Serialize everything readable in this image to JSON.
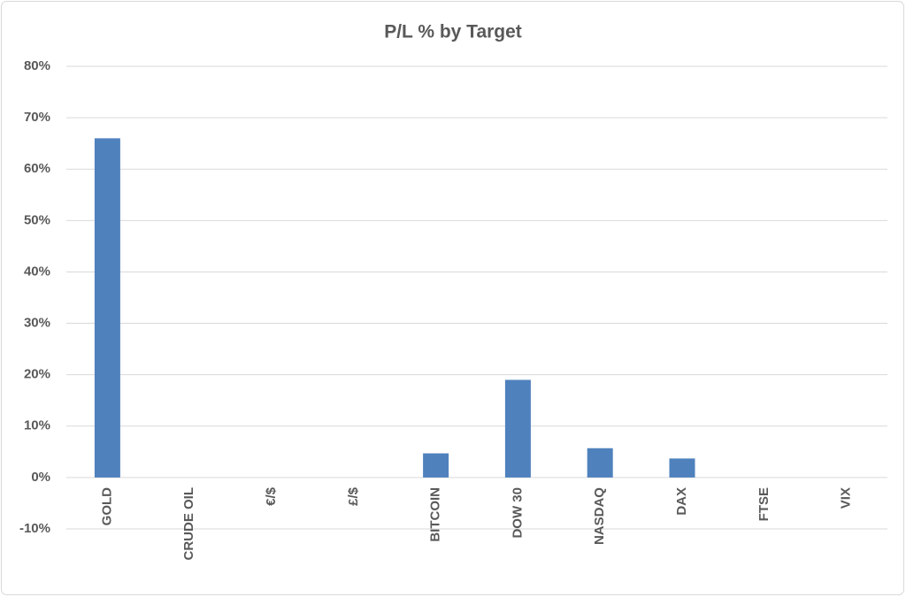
{
  "chart_data": {
    "type": "bar",
    "title": "P/L % by Target",
    "categories": [
      "GOLD",
      "CRUDE OIL",
      "€/$",
      "£/$",
      "BITCOIN",
      "DOW 30",
      "NASDAQ",
      "DAX",
      "FTSE",
      "VIX"
    ],
    "values": [
      66,
      0,
      0,
      0,
      4.7,
      19,
      5.7,
      3.7,
      0,
      0
    ],
    "color": "#4f81bd",
    "ylim": [
      -10,
      80
    ],
    "yticks": [
      {
        "value": -10,
        "label": "-10%"
      },
      {
        "value": 0,
        "label": "0%"
      },
      {
        "value": 10,
        "label": "10%"
      },
      {
        "value": 20,
        "label": "20%"
      },
      {
        "value": 30,
        "label": "30%"
      },
      {
        "value": 40,
        "label": "40%"
      },
      {
        "value": 50,
        "label": "50%"
      },
      {
        "value": 60,
        "label": "60%"
      },
      {
        "value": 70,
        "label": "70%"
      },
      {
        "value": 80,
        "label": "80%"
      }
    ],
    "grid": true
  }
}
